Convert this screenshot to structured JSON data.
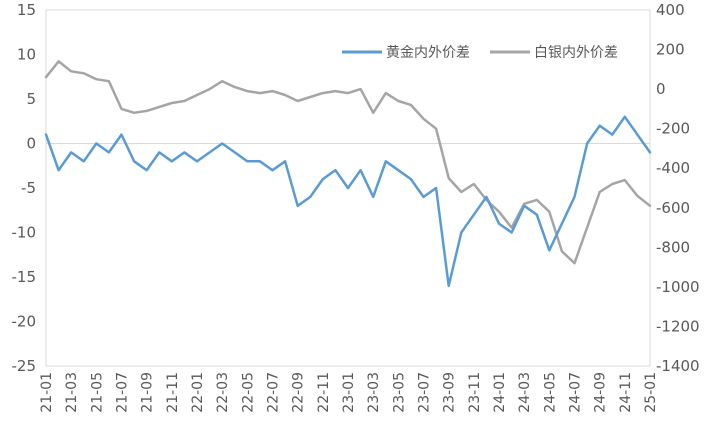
{
  "chart_data": {
    "type": "line",
    "title": "",
    "grid": false,
    "legend_position": "top-right",
    "x": [
      "21-01",
      "21-02",
      "21-03",
      "21-04",
      "21-05",
      "21-06",
      "21-07",
      "21-08",
      "21-09",
      "21-10",
      "21-11",
      "21-12",
      "22-01",
      "22-02",
      "22-03",
      "22-04",
      "22-05",
      "22-06",
      "22-07",
      "22-08",
      "22-09",
      "22-10",
      "22-11",
      "22-12",
      "23-01",
      "23-02",
      "23-03",
      "23-04",
      "23-05",
      "23-06",
      "23-07",
      "23-08",
      "23-09",
      "23-10",
      "23-11",
      "23-12",
      "24-01",
      "24-02",
      "24-03",
      "24-04",
      "24-05",
      "24-06",
      "24-07",
      "24-08",
      "24-09",
      "24-10",
      "24-11",
      "24-12",
      "25-01"
    ],
    "x_tick_labels": [
      "21-01",
      "21-03",
      "21-05",
      "21-07",
      "21-09",
      "21-11",
      "22-01",
      "22-03",
      "22-05",
      "22-07",
      "22-09",
      "22-11",
      "23-01",
      "23-03",
      "23-05",
      "23-07",
      "23-09",
      "23-11",
      "24-01",
      "24-03",
      "24-05",
      "24-07",
      "24-09",
      "24-11",
      "25-01"
    ],
    "y_left": {
      "lim": [
        -25,
        15
      ],
      "ticks": [
        "15",
        "10",
        "5",
        "0",
        "-5",
        "-10",
        "-15",
        "-20",
        "-25"
      ]
    },
    "y_right": {
      "lim": [
        -1400,
        400
      ],
      "ticks": [
        "400",
        "200",
        "0",
        "-200",
        "-400",
        "-600",
        "-800",
        "-1000",
        "-1200",
        "-1400"
      ]
    },
    "series": [
      {
        "name": "黄金内外价差",
        "axis": "left",
        "color": "#5B9BD5",
        "values": [
          1,
          -3,
          -1,
          -2,
          0,
          -1,
          1,
          -2,
          -3,
          -1,
          -2,
          -1,
          -2,
          -1,
          0,
          -1,
          -2,
          -2,
          -3,
          -2,
          -7,
          -6,
          -4,
          -3,
          -5,
          -3,
          -6,
          -2,
          -3,
          -4,
          -6,
          -5,
          -16,
          -10,
          -8,
          -6,
          -9,
          -10,
          -7,
          -8,
          -12,
          -9,
          -6,
          0,
          2,
          1,
          3,
          1,
          -1
        ]
      },
      {
        "name": "白银内外价差",
        "axis": "right",
        "color": "#A5A5A5",
        "values": [
          60,
          140,
          90,
          80,
          50,
          40,
          -100,
          -120,
          -110,
          -90,
          -70,
          -60,
          -30,
          0,
          40,
          10,
          -10,
          -20,
          -10,
          -30,
          -60,
          -40,
          -20,
          -10,
          -20,
          0,
          -120,
          -20,
          -60,
          -80,
          -150,
          -200,
          -450,
          -520,
          -480,
          -560,
          -620,
          -700,
          -580,
          -560,
          -620,
          -820,
          -880,
          -700,
          -520,
          -480,
          -460,
          -540,
          -590
        ]
      }
    ]
  }
}
